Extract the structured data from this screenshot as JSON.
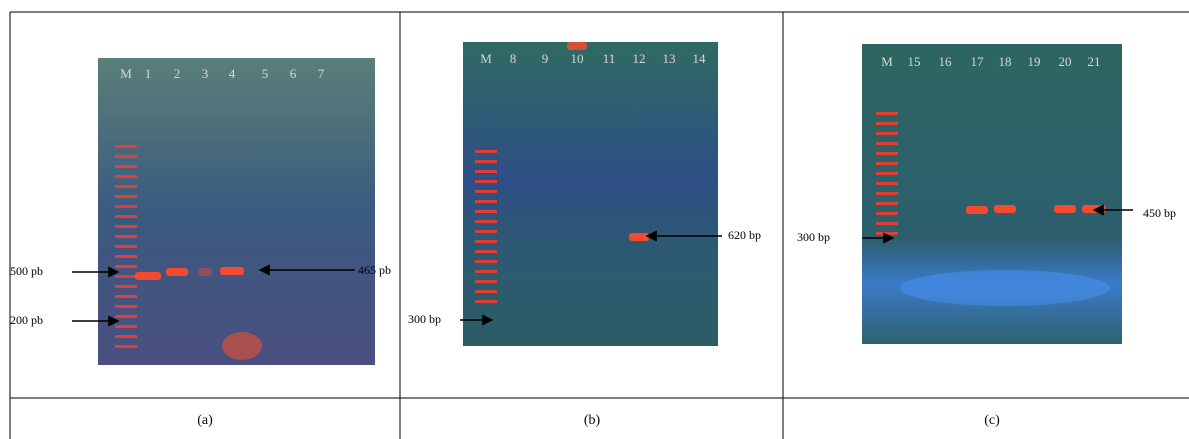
{
  "panels": [
    {
      "lanes": [
        "M",
        "1",
        "2",
        "3",
        "4",
        "5",
        "6",
        "7"
      ],
      "annotations": [
        {
          "label": "500  pb"
        },
        {
          "label": "200  pb"
        },
        {
          "label": "465  pb"
        }
      ],
      "caption": "(a)"
    },
    {
      "lanes": [
        "M",
        "8",
        "9",
        "10",
        "11",
        "12",
        "13",
        "14"
      ],
      "annotations": [
        {
          "label": "620  bp"
        },
        {
          "label": "300  bp"
        }
      ],
      "caption": "(b)"
    },
    {
      "lanes": [
        "M",
        "15",
        "16",
        "17",
        "18",
        "19",
        "20",
        "21"
      ],
      "annotations": [
        {
          "label": "300  bp"
        },
        {
          "label": "450  bp"
        }
      ],
      "caption": "(c)"
    }
  ]
}
